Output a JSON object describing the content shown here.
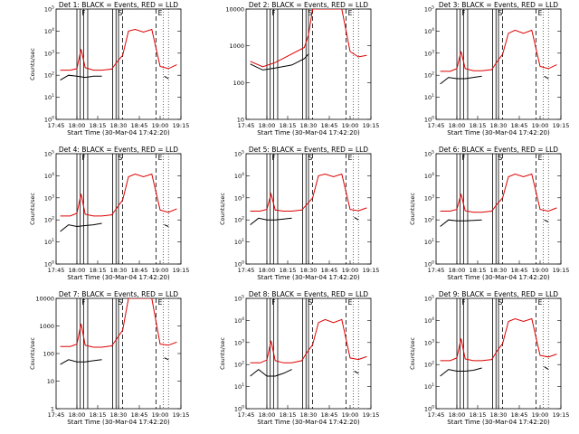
{
  "chart_data": [
    {
      "type": "line",
      "title": "Det 1: BLACK = Events, RED = LLD",
      "xlabel": "Start Time (30-Mar-04 17:42:20)",
      "ylabel": "Counts/sec",
      "xticks": [
        "17:45",
        "18:00",
        "18:15",
        "18:30",
        "18:45",
        "19:00",
        "19:15"
      ],
      "yscale": "log",
      "ylim": [
        1,
        100000
      ],
      "yticks": [
        "10^0",
        "10^1",
        "10^2",
        "10^3",
        "10^4",
        "10^5"
      ],
      "annotations": [
        "F",
        "S",
        "E"
      ],
      "series": [
        {
          "color": "#000000",
          "x": [
            17.8,
            17.9,
            18.0,
            18.1,
            18.2,
            18.3,
            18.45,
            18.5,
            18.51,
            18.9,
            19.05,
            19.1
          ],
          "y": [
            60,
            100,
            90,
            80,
            90,
            90,
            null,
            null,
            null,
            null,
            90,
            70
          ]
        },
        {
          "color": "#dd0000",
          "x": [
            17.8,
            17.92,
            18.0,
            18.05,
            18.1,
            18.2,
            18.3,
            18.42,
            18.48,
            18.55,
            18.62,
            18.7,
            18.8,
            18.9,
            19.0,
            19.1,
            19.2
          ],
          "y": [
            170,
            170,
            200,
            1500,
            220,
            170,
            170,
            190,
            400,
            800,
            10000,
            12000,
            9000,
            12000,
            250,
            200,
            300
          ]
        }
      ]
    },
    {
      "type": "line",
      "title": "Det 2: BLACK = Events, RED = LLD",
      "xlabel": "Start Time (30-Mar-04 17:42:20)",
      "ylabel": "",
      "xticks": [
        "17:45",
        "18:00",
        "18:15",
        "18:30",
        "18:45",
        "19:00",
        "19:15"
      ],
      "yscale": "log",
      "ylim": [
        10,
        10000
      ],
      "yticks": [
        "10",
        "100",
        "1000",
        "10000"
      ],
      "annotations": [
        "F",
        "S",
        "E"
      ],
      "series": [
        {
          "color": "#000000",
          "x": [
            17.8,
            17.95,
            18.1,
            18.3,
            18.45,
            18.5
          ],
          "y": [
            320,
            220,
            250,
            300,
            450,
            600
          ]
        },
        {
          "color": "#dd0000",
          "x": [
            17.8,
            17.95,
            18.1,
            18.3,
            18.45,
            18.5,
            18.55,
            18.62,
            18.7,
            18.8,
            18.9,
            19.0,
            19.1,
            19.2
          ],
          "y": [
            380,
            270,
            350,
            600,
            900,
            2000,
            10000,
            10000,
            10000,
            10000,
            10000,
            700,
            500,
            550
          ]
        }
      ]
    },
    {
      "type": "line",
      "title": "Det 3: BLACK = Events, RED = LLD",
      "xlabel": "Start Time (30-Mar-04 17:42:20)",
      "ylabel": "",
      "xticks": [
        "17:45",
        "18:00",
        "18:15",
        "18:30",
        "18:45",
        "19:00",
        "19:15"
      ],
      "yscale": "log",
      "ylim": [
        1,
        100000
      ],
      "yticks": [
        "10^0",
        "10^1",
        "10^2",
        "10^3",
        "10^4",
        "10^5"
      ],
      "annotations": [
        "F",
        "S",
        "E"
      ],
      "series": [
        {
          "color": "#000000",
          "x": [
            17.8,
            17.9,
            18.0,
            18.1,
            18.2,
            18.3,
            18.45,
            19.05,
            19.1
          ],
          "y": [
            40,
            80,
            70,
            70,
            80,
            90,
            null,
            90,
            70
          ]
        },
        {
          "color": "#dd0000",
          "x": [
            17.8,
            17.92,
            18.0,
            18.05,
            18.1,
            18.2,
            18.3,
            18.42,
            18.48,
            18.55,
            18.62,
            18.7,
            18.8,
            18.9,
            19.0,
            19.1,
            19.2
          ],
          "y": [
            150,
            150,
            200,
            1200,
            200,
            160,
            160,
            180,
            400,
            900,
            8000,
            11000,
            8000,
            11000,
            250,
            200,
            300
          ]
        }
      ]
    },
    {
      "type": "line",
      "title": "Det 4: BLACK = Events, RED = LLD",
      "xlabel": "Start Time (30-Mar-04 17:42:20)",
      "ylabel": "Counts/sec",
      "xticks": [
        "17:45",
        "18:00",
        "18:15",
        "18:30",
        "18:45",
        "19:00",
        "19:15"
      ],
      "yscale": "log",
      "ylim": [
        1,
        100000
      ],
      "yticks": [
        "10^0",
        "10^1",
        "10^2",
        "10^3",
        "10^4",
        "10^5"
      ],
      "annotations": [
        "F",
        "S",
        "E"
      ],
      "series": [
        {
          "color": "#000000",
          "x": [
            17.8,
            17.9,
            18.0,
            18.1,
            18.2,
            18.3,
            18.45,
            19.05,
            19.1
          ],
          "y": [
            30,
            60,
            50,
            55,
            60,
            70,
            null,
            60,
            50
          ]
        },
        {
          "color": "#dd0000",
          "x": [
            17.8,
            17.92,
            18.0,
            18.05,
            18.1,
            18.2,
            18.3,
            18.42,
            18.48,
            18.55,
            18.62,
            18.7,
            18.8,
            18.9,
            19.0,
            19.1,
            19.2
          ],
          "y": [
            150,
            150,
            200,
            1500,
            180,
            150,
            150,
            170,
            350,
            800,
            9000,
            12000,
            9000,
            12000,
            280,
            220,
            320
          ]
        }
      ]
    },
    {
      "type": "line",
      "title": "Det 5: BLACK = Events, RED = LLD",
      "xlabel": "Start Time (30-Mar-04 17:42:20)",
      "ylabel": "Counts/sec",
      "xticks": [
        "17:45",
        "18:00",
        "18:15",
        "18:30",
        "18:45",
        "19:00",
        "19:15"
      ],
      "yscale": "log",
      "ylim": [
        1,
        100000
      ],
      "yticks": [
        "10^0",
        "10^1",
        "10^2",
        "10^3",
        "10^4",
        "10^5"
      ],
      "annotations": [
        "F",
        "S",
        "E"
      ],
      "series": [
        {
          "color": "#000000",
          "x": [
            17.8,
            17.9,
            18.0,
            18.1,
            18.2,
            18.3,
            18.45,
            19.05,
            19.1
          ],
          "y": [
            60,
            120,
            100,
            100,
            110,
            120,
            null,
            130,
            100
          ]
        },
        {
          "color": "#dd0000",
          "x": [
            17.8,
            17.92,
            18.0,
            18.05,
            18.1,
            18.2,
            18.3,
            18.42,
            18.48,
            18.55,
            18.62,
            18.7,
            18.8,
            18.9,
            19.0,
            19.1,
            19.2
          ],
          "y": [
            250,
            250,
            300,
            1500,
            280,
            250,
            250,
            280,
            500,
            1000,
            10000,
            12000,
            9000,
            12000,
            300,
            260,
            350
          ]
        }
      ]
    },
    {
      "type": "line",
      "title": "Det 6: BLACK = Events, RED = LLD",
      "xlabel": "Start Time (30-Mar-04 17:42:20)",
      "ylabel": "Counts/sec",
      "xticks": [
        "17:45",
        "18:00",
        "18:15",
        "18:30",
        "18:45",
        "19:00",
        "19:15"
      ],
      "yscale": "log",
      "ylim": [
        1,
        100000
      ],
      "yticks": [
        "10^0",
        "10^1",
        "10^2",
        "10^3",
        "10^4",
        "10^5"
      ],
      "annotations": [
        "F",
        "S",
        "E"
      ],
      "series": [
        {
          "color": "#000000",
          "x": [
            17.8,
            17.9,
            18.0,
            18.1,
            18.2,
            18.3,
            18.45,
            19.05,
            19.1
          ],
          "y": [
            50,
            100,
            90,
            90,
            95,
            100,
            null,
            100,
            80
          ]
        },
        {
          "color": "#dd0000",
          "x": [
            17.8,
            17.92,
            18.0,
            18.05,
            18.1,
            18.2,
            18.3,
            18.42,
            18.48,
            18.55,
            18.62,
            18.7,
            18.8,
            18.9,
            19.0,
            19.1,
            19.2
          ],
          "y": [
            250,
            250,
            300,
            1500,
            260,
            220,
            220,
            250,
            500,
            1000,
            9000,
            12000,
            9000,
            12000,
            300,
            250,
            350
          ]
        }
      ]
    },
    {
      "type": "line",
      "title": "Det 7: BLACK = Events, RED = LLD",
      "xlabel": "Start Time (30-Mar-04 17:42:20)",
      "ylabel": "Counts/sec",
      "xticks": [
        "17:45",
        "18:00",
        "18:15",
        "18:30",
        "18:45",
        "19:00",
        "19:15"
      ],
      "yscale": "log",
      "ylim": [
        1,
        10000
      ],
      "yticks": [
        "1",
        "10",
        "100",
        "1000",
        "10000"
      ],
      "annotations": [
        "F",
        "S",
        "E"
      ],
      "series": [
        {
          "color": "#000000",
          "x": [
            17.8,
            17.9,
            18.0,
            18.1,
            18.2,
            18.3,
            18.45,
            19.05,
            19.1
          ],
          "y": [
            40,
            60,
            50,
            50,
            55,
            60,
            null,
            70,
            60
          ]
        },
        {
          "color": "#dd0000",
          "x": [
            17.8,
            17.92,
            18.0,
            18.05,
            18.1,
            18.2,
            18.3,
            18.42,
            18.48,
            18.55,
            18.62,
            18.7,
            18.8,
            18.9,
            19.0,
            19.1,
            19.2
          ],
          "y": [
            180,
            180,
            220,
            1200,
            200,
            170,
            170,
            190,
            350,
            700,
            10000,
            10000,
            10000,
            10000,
            220,
            200,
            260
          ]
        }
      ]
    },
    {
      "type": "line",
      "title": "Det 8: BLACK = Events, RED = LLD",
      "xlabel": "Start Time (30-Mar-04 17:42:20)",
      "ylabel": "Counts/sec",
      "xticks": [
        "17:45",
        "18:00",
        "18:15",
        "18:30",
        "18:45",
        "19:00",
        "19:15"
      ],
      "yscale": "log",
      "ylim": [
        1,
        100000
      ],
      "yticks": [
        "10^0",
        "10^1",
        "10^2",
        "10^3",
        "10^4",
        "10^5"
      ],
      "annotations": [
        "F",
        "S",
        "E"
      ],
      "series": [
        {
          "color": "#000000",
          "x": [
            17.8,
            17.9,
            18.0,
            18.1,
            18.2,
            18.3,
            18.45,
            19.05,
            19.1
          ],
          "y": [
            30,
            60,
            30,
            30,
            40,
            60,
            null,
            50,
            40
          ]
        },
        {
          "color": "#dd0000",
          "x": [
            17.8,
            17.92,
            18.0,
            18.05,
            18.1,
            18.2,
            18.3,
            18.42,
            18.48,
            18.55,
            18.62,
            18.7,
            18.8,
            18.9,
            19.0,
            19.1,
            19.2
          ],
          "y": [
            120,
            120,
            160,
            1200,
            150,
            120,
            120,
            150,
            350,
            800,
            8000,
            11000,
            8000,
            11000,
            200,
            170,
            230
          ]
        }
      ]
    },
    {
      "type": "line",
      "title": "Det 9: BLACK = Events, RED = LLD",
      "xlabel": "Start Time (30-Mar-04 17:42:20)",
      "ylabel": "Counts/sec",
      "xticks": [
        "17:45",
        "18:00",
        "18:15",
        "18:30",
        "18:45",
        "19:00",
        "19:15"
      ],
      "yscale": "log",
      "ylim": [
        1,
        100000
      ],
      "yticks": [
        "10^0",
        "10^1",
        "10^2",
        "10^3",
        "10^4",
        "10^5"
      ],
      "annotations": [
        "F",
        "S",
        "E"
      ],
      "series": [
        {
          "color": "#000000",
          "x": [
            17.8,
            17.9,
            18.0,
            18.1,
            18.2,
            18.3,
            18.45,
            19.05,
            19.1
          ],
          "y": [
            30,
            60,
            50,
            50,
            55,
            70,
            null,
            80,
            60
          ]
        },
        {
          "color": "#dd0000",
          "x": [
            17.8,
            17.92,
            18.0,
            18.05,
            18.1,
            18.2,
            18.3,
            18.42,
            18.48,
            18.55,
            18.62,
            18.7,
            18.8,
            18.9,
            19.0,
            19.1,
            19.2
          ],
          "y": [
            150,
            150,
            200,
            1500,
            180,
            150,
            150,
            170,
            400,
            900,
            9000,
            12000,
            9000,
            12000,
            260,
            220,
            300
          ]
        }
      ]
    }
  ]
}
